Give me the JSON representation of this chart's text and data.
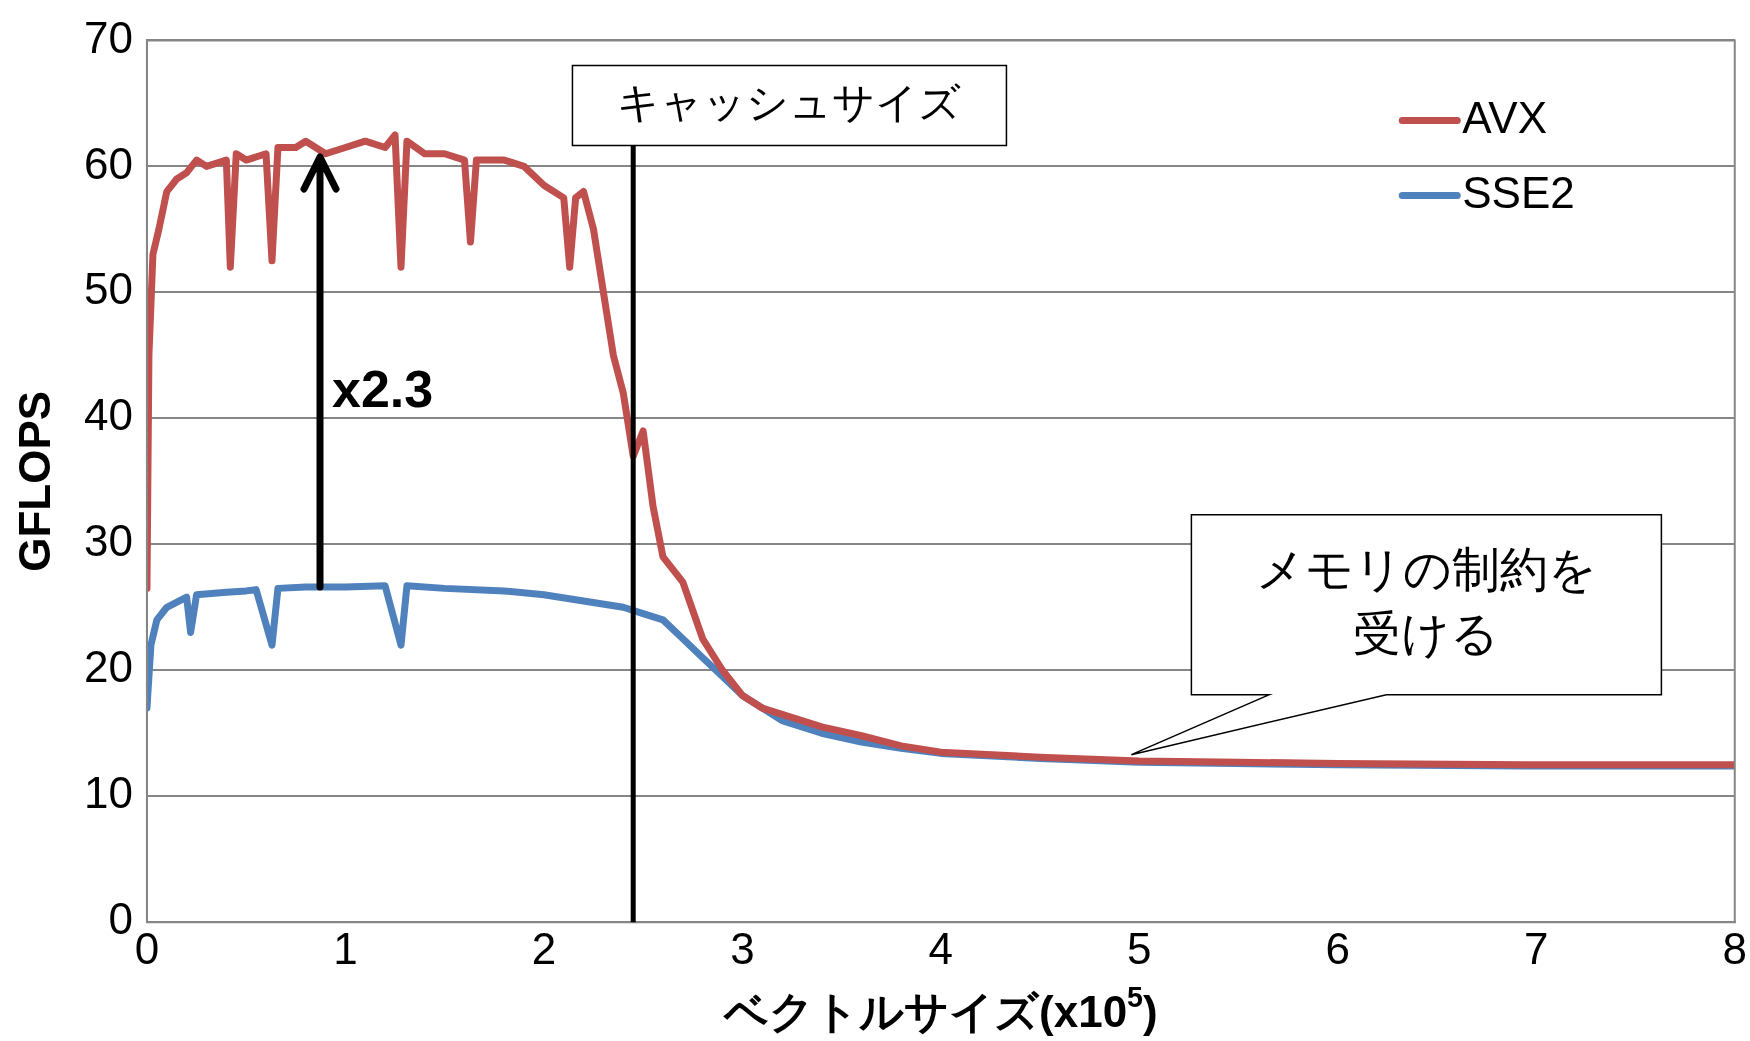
{
  "chart_data": {
    "type": "line",
    "xlabel": "ベクトルサイズ(x10$^{5}$)",
    "ylabel": "GFLOPS",
    "xlim": [
      0,
      8
    ],
    "xticks": [
      0,
      1,
      2,
      3,
      4,
      5,
      6,
      7,
      8
    ],
    "ylim": [
      0,
      70
    ],
    "yticks": [
      0,
      10,
      20,
      30,
      40,
      50,
      60,
      70
    ],
    "grid": "y",
    "legend": "top right",
    "marker": "none",
    "line_style": "solid",
    "series": [
      {
        "name": "AVX",
        "color": "#c0504d",
        "x": [
          0,
          0.01,
          0.03,
          0.06,
          0.1,
          0.15,
          0.2,
          0.25,
          0.3,
          0.4,
          0.42,
          0.45,
          0.5,
          0.6,
          0.63,
          0.66,
          0.75,
          0.8,
          0.9,
          1.0,
          1.1,
          1.2,
          1.25,
          1.28,
          1.31,
          1.4,
          1.5,
          1.6,
          1.63,
          1.66,
          1.8,
          1.9,
          2.0,
          2.1,
          2.13,
          2.16,
          2.2,
          2.25,
          2.3,
          2.35,
          2.4,
          2.45,
          2.5,
          2.55,
          2.6,
          2.7,
          2.8,
          2.9,
          3.0,
          3.1,
          3.2,
          3.4,
          3.6,
          3.8,
          4.0,
          4.5,
          5.0,
          5.5,
          6,
          7,
          8
        ],
        "values": [
          26.5,
          45,
          53,
          55,
          58,
          59,
          59.5,
          60.5,
          60,
          60.5,
          52,
          61,
          60.5,
          61,
          52.5,
          61.5,
          61.5,
          62,
          61,
          61.5,
          62,
          61.5,
          62.5,
          52,
          62,
          61,
          61,
          60.5,
          54,
          60.5,
          60.5,
          60,
          58.5,
          57.5,
          52,
          57.5,
          58,
          55,
          50,
          45,
          42,
          37,
          39,
          33,
          29,
          27,
          22.5,
          20,
          18,
          17,
          16.5,
          15.5,
          14.8,
          14,
          13.5,
          13.1,
          12.8,
          12.7,
          12.6,
          12.5,
          12.5
        ]
      },
      {
        "name": "SSE2",
        "color": "#4f81bd",
        "x": [
          0,
          0.02,
          0.05,
          0.1,
          0.2,
          0.22,
          0.25,
          0.4,
          0.5,
          0.55,
          0.63,
          0.66,
          0.8,
          1.0,
          1.2,
          1.28,
          1.31,
          1.5,
          1.8,
          2.0,
          2.2,
          2.4,
          2.5,
          2.6,
          2.7,
          2.8,
          2.9,
          3.0,
          3.1,
          3.2,
          3.4,
          3.6,
          3.8,
          4.0,
          4.5,
          5.0,
          6,
          7,
          8
        ],
        "values": [
          17,
          22,
          24,
          25,
          25.8,
          23,
          26,
          26.2,
          26.3,
          26.4,
          22,
          26.5,
          26.6,
          26.6,
          26.7,
          22,
          26.7,
          26.5,
          26.3,
          26,
          25.5,
          25,
          24.5,
          24,
          22.5,
          21,
          19.5,
          18,
          17,
          16,
          15,
          14.3,
          13.8,
          13.4,
          13,
          12.7,
          12.5,
          12.4,
          12.4
        ]
      }
    ],
    "ref_lines": [
      {
        "axis": "x",
        "value": 2.45,
        "label": "キャッシュサイズ",
        "color": "#000000"
      }
    ],
    "annotations": [
      "x2.3",
      "メモリの制約を受ける"
    ]
  }
}
